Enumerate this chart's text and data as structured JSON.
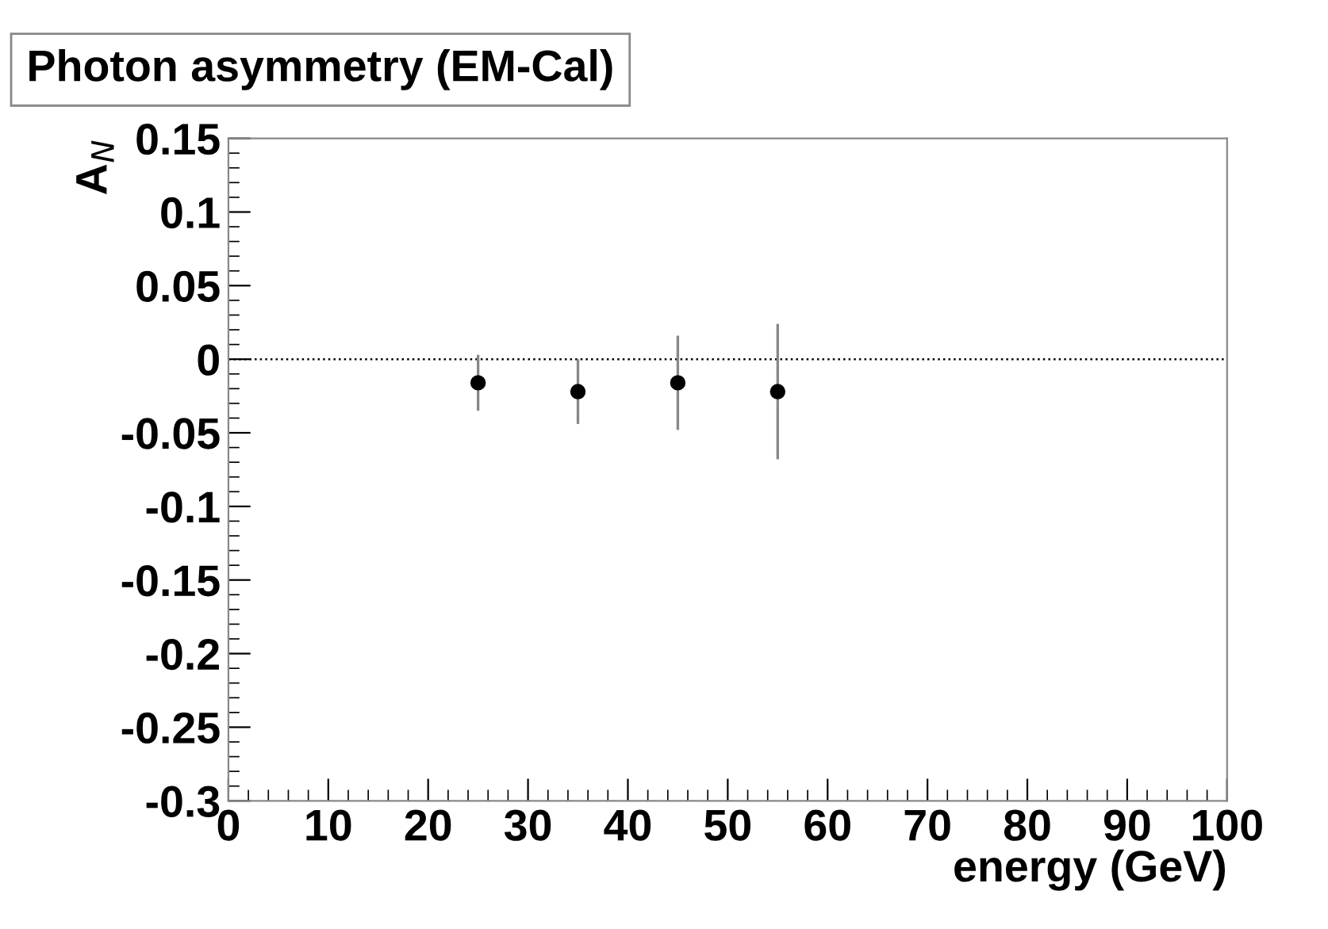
{
  "chart_data": {
    "type": "scatter",
    "title": "Photon asymmetry (EM-Cal)",
    "xlabel": "energy (GeV)",
    "ylabel": "A$_{N}$",
    "x": [
      25,
      35,
      45,
      55
    ],
    "series": [
      {
        "color": "#000000",
        "values": [
          -0.016,
          -0.022,
          -0.016,
          -0.022
        ],
        "errors": [
          0.019,
          0.022,
          0.032,
          0.046
        ]
      }
    ],
    "marker": "circle",
    "xlim": [
      0,
      100
    ],
    "xticks": [
      0,
      10,
      20,
      30,
      40,
      50,
      60,
      70,
      80,
      90,
      100
    ],
    "ylim": [
      -0.3,
      0.15
    ],
    "yticks": [
      -0.3,
      -0.25,
      -0.2,
      -0.15,
      -0.1,
      -0.05,
      0,
      0.05,
      0.1,
      0.15
    ],
    "ref_lines": [
      {
        "axis": "y",
        "value": 0,
        "color": "#000000",
        "line_style": "dotted"
      }
    ],
    "grid": false,
    "legend": false
  }
}
